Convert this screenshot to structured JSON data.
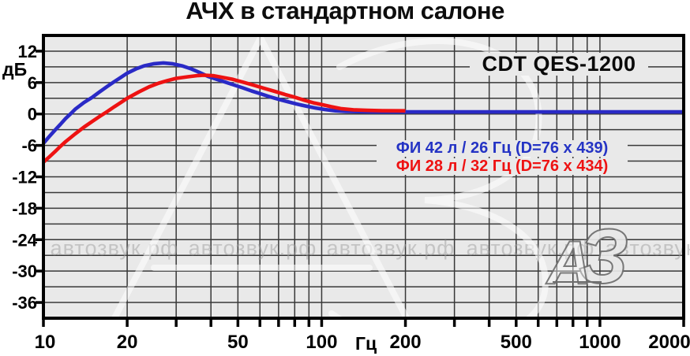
{
  "title": "АЧХ в стандартном салоне",
  "labels": {
    "y_axis": "дБ",
    "x_axis": "Гц",
    "model": "CDT QES-1200"
  },
  "annotations": {
    "blue": "ФИ 42 л / 26 Гц (D=76 x 439)",
    "red": "ФИ 28 л / 32 Гц (D=76 x 434)"
  },
  "watermark": {
    "text": "автозвук.рф",
    "logo_a": "А",
    "logo_z": "З"
  },
  "colors": {
    "curve_blue": "#2a2ac6",
    "curve_red": "#ee1212",
    "text_blue": "#2433c4",
    "text_red": "#ee1212",
    "plot_bg": "#e9e9e9",
    "grid": "#383838",
    "border": "#000000",
    "watermark_text": "#a0a0a0"
  },
  "chart_data": {
    "type": "line",
    "title": "АЧХ в стандартном салоне",
    "xlabel": "Гц",
    "ylabel": "дБ",
    "x_scale": "log",
    "xlim": [
      10,
      2000
    ],
    "ylim": [
      -39,
      15
    ],
    "grid": true,
    "y_grid_step_db": 3,
    "x_tick_labels": [
      10,
      20,
      50,
      100,
      200,
      500,
      1000,
      2000
    ],
    "x_gridlines": [
      20,
      30,
      40,
      50,
      60,
      70,
      80,
      90,
      100,
      200,
      300,
      400,
      500,
      600,
      700,
      800,
      900,
      1000
    ],
    "x_minor_ticks": [
      10,
      20,
      30,
      40,
      50,
      60,
      70,
      80,
      90,
      100,
      200,
      300,
      400,
      500,
      600,
      700,
      800,
      900,
      1000,
      2000
    ],
    "y_tick_labels": [
      12,
      6,
      0,
      -6,
      -12,
      -18,
      -24,
      -30,
      -36
    ],
    "annotation": "CDT QES-1200",
    "legend_position": "right-middle",
    "series": [
      {
        "name": "ФИ 42 л / 26 Гц (D=76 x 439)",
        "color": "#2a2ac6",
        "points": [
          [
            10,
            -5.6
          ],
          [
            10.5,
            -4.3
          ],
          [
            11,
            -3.1
          ],
          [
            11.5,
            -2.0
          ],
          [
            12,
            -0.9
          ],
          [
            12.5,
            0.0
          ],
          [
            13,
            0.9
          ],
          [
            14,
            2.2
          ],
          [
            15,
            3.2
          ],
          [
            16,
            4.3
          ],
          [
            17,
            5.3
          ],
          [
            18,
            6.2
          ],
          [
            19,
            7.0
          ],
          [
            20,
            7.8
          ],
          [
            21.5,
            8.6
          ],
          [
            23,
            9.2
          ],
          [
            25,
            9.6
          ],
          [
            27,
            9.75
          ],
          [
            29,
            9.6
          ],
          [
            31.5,
            9.2
          ],
          [
            34,
            8.6
          ],
          [
            36.5,
            7.9
          ],
          [
            39,
            7.2
          ],
          [
            42,
            6.6
          ],
          [
            45,
            6.1
          ],
          [
            48,
            5.6
          ],
          [
            52,
            5.0
          ],
          [
            56,
            4.4
          ],
          [
            60,
            3.9
          ],
          [
            65,
            3.3
          ],
          [
            70,
            2.8
          ],
          [
            76,
            2.3
          ],
          [
            82,
            1.85
          ],
          [
            88,
            1.5
          ],
          [
            95,
            1.15
          ],
          [
            103,
            0.85
          ],
          [
            112,
            0.6
          ],
          [
            122,
            0.5
          ],
          [
            135,
            0.45
          ],
          [
            150,
            0.4
          ],
          [
            200,
            0.4
          ],
          [
            300,
            0.4
          ],
          [
            500,
            0.4
          ],
          [
            1000,
            0.4
          ],
          [
            2000,
            0.4
          ]
        ]
      },
      {
        "name": "ФИ 28 л / 32 Гц (D=76 x 434)",
        "color": "#ee1212",
        "points": [
          [
            10,
            -9.2
          ],
          [
            10.5,
            -8.2
          ],
          [
            11,
            -7.2
          ],
          [
            11.5,
            -6.2
          ],
          [
            12,
            -5.3
          ],
          [
            13,
            -3.8
          ],
          [
            14,
            -2.5
          ],
          [
            15,
            -1.4
          ],
          [
            16,
            -0.4
          ],
          [
            17,
            0.5
          ],
          [
            18,
            1.4
          ],
          [
            19,
            2.2
          ],
          [
            20,
            3.0
          ],
          [
            22,
            4.2
          ],
          [
            24,
            5.2
          ],
          [
            26,
            5.9
          ],
          [
            28,
            6.4
          ],
          [
            30,
            6.8
          ],
          [
            33,
            7.1
          ],
          [
            36,
            7.35
          ],
          [
            38,
            7.4
          ],
          [
            41,
            7.3
          ],
          [
            44,
            7.0
          ],
          [
            48,
            6.6
          ],
          [
            52,
            6.1
          ],
          [
            57,
            5.5
          ],
          [
            62,
            4.9
          ],
          [
            68,
            4.3
          ],
          [
            74,
            3.7
          ],
          [
            80,
            3.2
          ],
          [
            87,
            2.6
          ],
          [
            94,
            2.1
          ],
          [
            100,
            1.8
          ],
          [
            108,
            1.4
          ],
          [
            118,
            1.0
          ],
          [
            130,
            0.8
          ],
          [
            145,
            0.7
          ],
          [
            165,
            0.62
          ],
          [
            200,
            0.6
          ]
        ]
      }
    ]
  }
}
